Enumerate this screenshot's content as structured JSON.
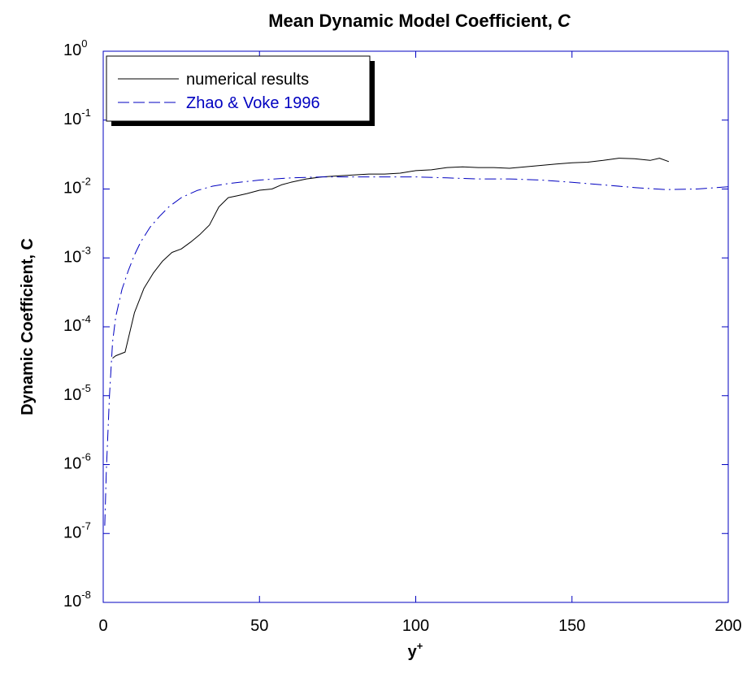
{
  "chart_data": {
    "type": "line",
    "title_main": "Mean Dynamic Model Coefficient, ",
    "title_var": "C",
    "xlabel_main": "y",
    "xlabel_sup": "+",
    "ylabel": "Dynamic Coefficient, C",
    "xlim": [
      0,
      200
    ],
    "ylim": [
      1e-08,
      1
    ],
    "yscale": "log",
    "grid": false,
    "legend_position": "top-left",
    "x_ticks": [
      "0",
      "50",
      "100",
      "150",
      "200"
    ],
    "y_tick_base": "10",
    "y_tick_exps": [
      "0",
      "-1",
      "-2",
      "-3",
      "-4",
      "-5",
      "-6",
      "-7",
      "-8"
    ],
    "series": [
      {
        "name": "numerical results",
        "color": "#000000",
        "dash": "solid",
        "x": [
          3,
          4,
          7,
          10,
          13,
          16,
          19,
          22,
          25,
          28,
          31,
          34,
          37,
          40,
          43,
          46,
          50,
          54,
          57,
          60,
          65,
          70,
          75,
          80,
          85,
          90,
          95,
          100,
          105,
          110,
          115,
          120,
          125,
          130,
          135,
          140,
          145,
          150,
          155,
          160,
          165,
          170,
          175,
          178,
          181
        ],
        "y": [
          3.5e-05,
          3.8e-05,
          4.3e-05,
          0.00016,
          0.00036,
          0.0006,
          0.0009,
          0.0012,
          0.00135,
          0.0017,
          0.0022,
          0.003,
          0.0055,
          0.0075,
          0.008,
          0.0086,
          0.0096,
          0.01,
          0.0115,
          0.0125,
          0.014,
          0.015,
          0.0155,
          0.016,
          0.0165,
          0.0165,
          0.017,
          0.0185,
          0.019,
          0.0205,
          0.021,
          0.0205,
          0.0205,
          0.02,
          0.021,
          0.022,
          0.023,
          0.024,
          0.0245,
          0.026,
          0.028,
          0.0275,
          0.026,
          0.028,
          0.025
        ]
      },
      {
        "name": "Zhao & Voke 1996",
        "color": "#0000c0",
        "dash": "dashdot",
        "x": [
          0.5,
          1,
          2,
          3,
          4,
          6,
          8,
          10,
          12,
          15,
          18,
          21,
          25,
          30,
          35,
          40,
          50,
          60,
          70,
          80,
          90,
          100,
          110,
          120,
          130,
          140,
          150,
          160,
          170,
          180,
          190,
          200
        ],
        "y": [
          1.3e-07,
          8e-07,
          1e-05,
          6e-05,
          0.00014,
          0.00035,
          0.00065,
          0.0011,
          0.0017,
          0.0028,
          0.004,
          0.0055,
          0.0075,
          0.0095,
          0.011,
          0.012,
          0.0135,
          0.0145,
          0.015,
          0.015,
          0.015,
          0.015,
          0.0145,
          0.014,
          0.014,
          0.0135,
          0.0125,
          0.0115,
          0.0105,
          0.0098,
          0.01,
          0.0108
        ]
      }
    ]
  }
}
